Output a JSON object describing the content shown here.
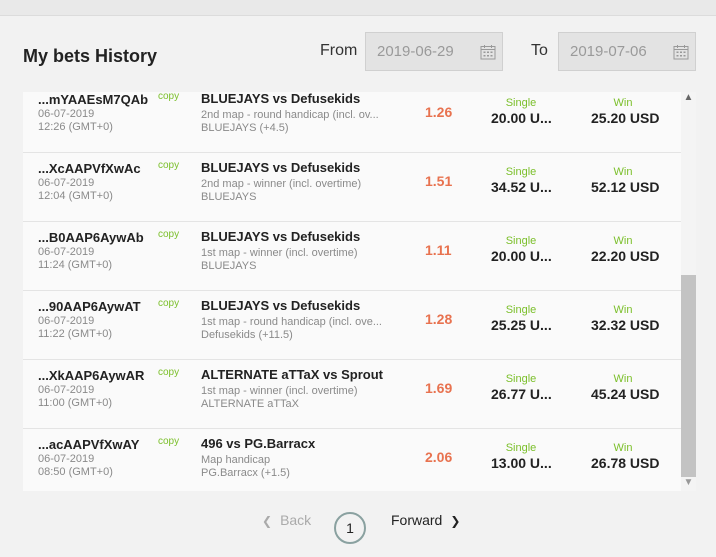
{
  "header": {
    "title": "My bets History",
    "from_label": "From",
    "from_date": "2019-06-29",
    "to_label": "To",
    "to_date": "2019-07-06"
  },
  "copy_label": "copy",
  "bets": [
    {
      "id": "...mYAAEsM7QAb",
      "date": "06-07-2019",
      "time": "12:26 (GMT+0)",
      "match": "BLUEJAYS vs Defusekids",
      "market": "2nd map - round handicap (incl. ov...",
      "selection": "BLUEJAYS (+4.5)",
      "odds": "1.26",
      "type": "Single",
      "stake": "20.00 U...",
      "result": "Win",
      "payout": "25.20 USD"
    },
    {
      "id": "...XcAAPVfXwAc",
      "date": "06-07-2019",
      "time": "12:04 (GMT+0)",
      "match": "BLUEJAYS vs Defusekids",
      "market": "2nd map - winner (incl. overtime)",
      "selection": "BLUEJAYS",
      "odds": "1.51",
      "type": "Single",
      "stake": "34.52 U...",
      "result": "Win",
      "payout": "52.12 USD"
    },
    {
      "id": "...B0AAP6AywAb",
      "date": "06-07-2019",
      "time": "11:24 (GMT+0)",
      "match": "BLUEJAYS vs Defusekids",
      "market": "1st map - winner (incl. overtime)",
      "selection": "BLUEJAYS",
      "odds": "1.11",
      "type": "Single",
      "stake": "20.00 U...",
      "result": "Win",
      "payout": "22.20 USD"
    },
    {
      "id": "...90AAP6AywAT",
      "date": "06-07-2019",
      "time": "11:22 (GMT+0)",
      "match": "BLUEJAYS vs Defusekids",
      "market": "1st map - round handicap (incl. ove...",
      "selection": "Defusekids (+11.5)",
      "odds": "1.28",
      "type": "Single",
      "stake": "25.25 U...",
      "result": "Win",
      "payout": "32.32 USD"
    },
    {
      "id": "...XkAAP6AywAR",
      "date": "06-07-2019",
      "time": "11:00 (GMT+0)",
      "match": "ALTERNATE aTTaX vs Sprout",
      "market": "1st map - winner (incl. overtime)",
      "selection": "ALTERNATE aTTaX",
      "odds": "1.69",
      "type": "Single",
      "stake": "26.77 U...",
      "result": "Win",
      "payout": "45.24 USD"
    },
    {
      "id": "...acAAPVfXwAY",
      "date": "06-07-2019",
      "time": "08:50 (GMT+0)",
      "match": "496 vs PG.Barracx",
      "market": "Map handicap",
      "selection": "PG.Barracx (+1.5)",
      "odds": "2.06",
      "type": "Single",
      "stake": "13.00 U...",
      "result": "Win",
      "payout": "26.78 USD"
    }
  ],
  "pagination": {
    "back_label": "Back",
    "current_page": "1",
    "forward_label": "Forward"
  },
  "colors": {
    "odds": "#e8724f",
    "accent_green": "#7bbf2a"
  }
}
